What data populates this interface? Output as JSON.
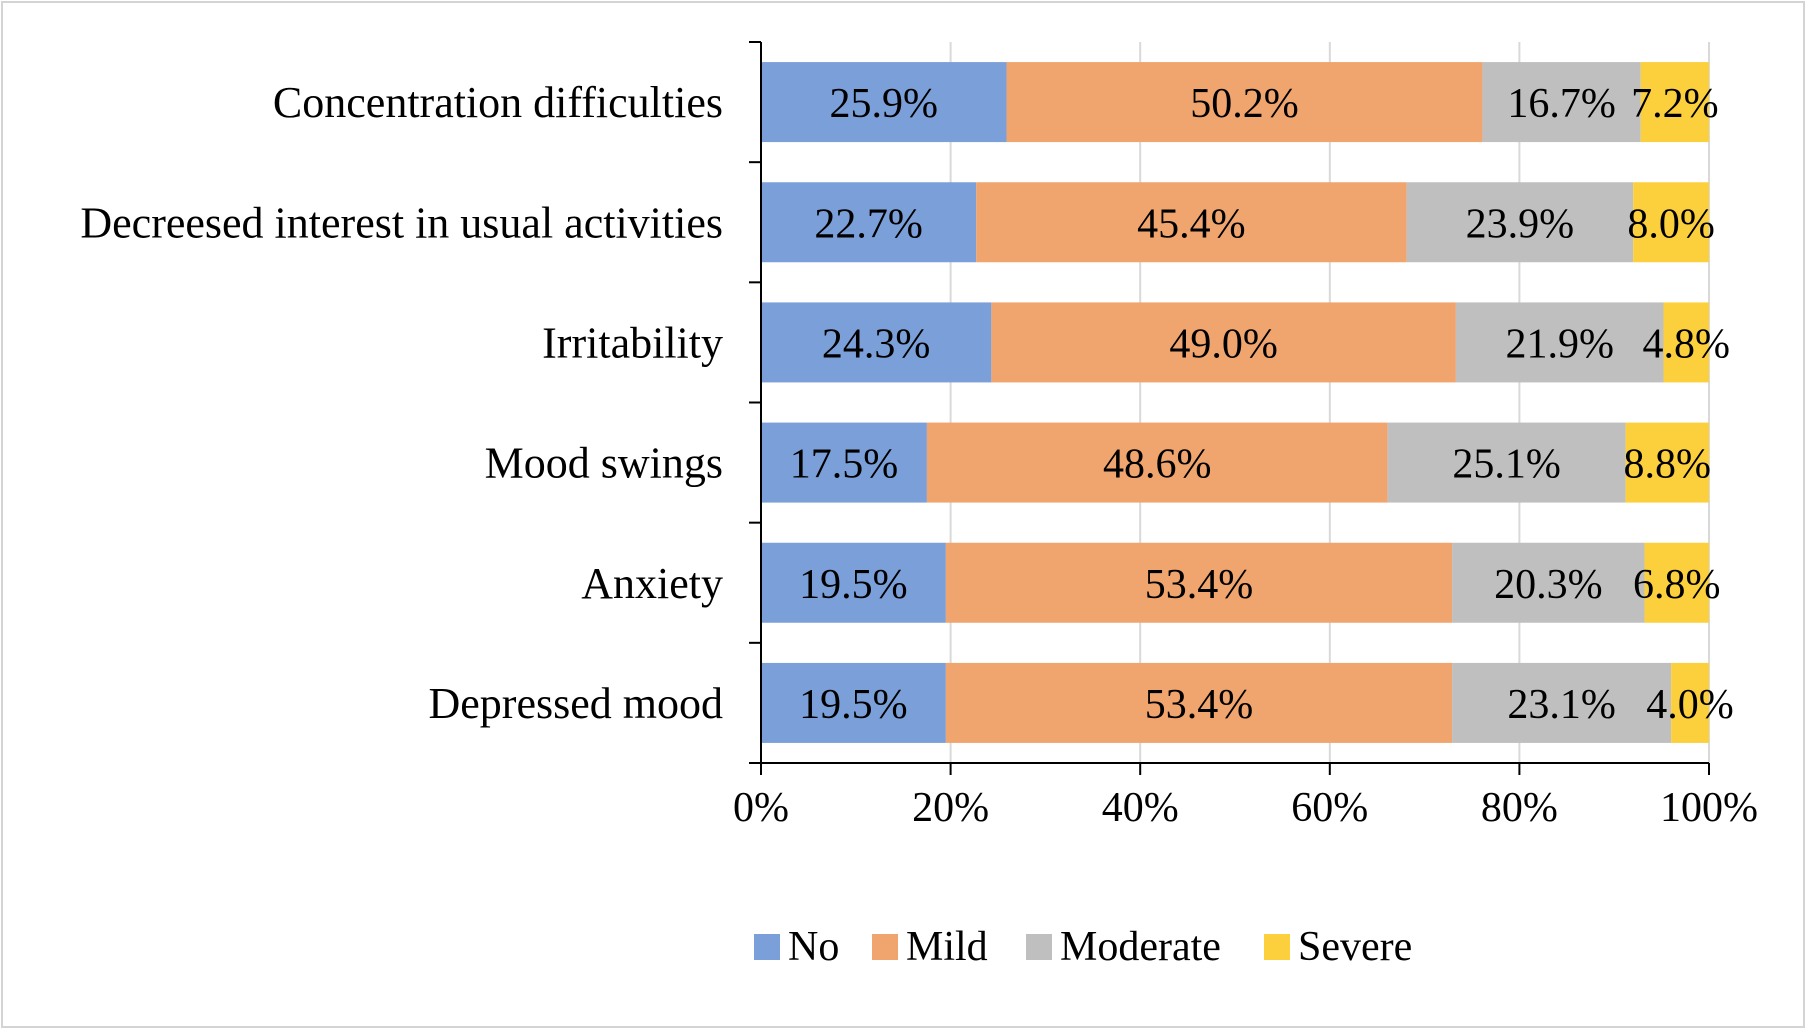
{
  "chart_data": {
    "type": "bar",
    "orientation": "horizontal",
    "stacked": "100%",
    "categories": [
      "Concentration difficulties",
      "Decreesed interest in usual activities",
      "Irritability",
      "Mood swings",
      "Anxiety",
      "Depressed mood"
    ],
    "series": [
      {
        "name": "No",
        "color": "#7b9fd8",
        "values": [
          25.9,
          22.7,
          24.3,
          17.5,
          19.5,
          19.5
        ]
      },
      {
        "name": "Mild",
        "color": "#f0a46e",
        "values": [
          50.2,
          45.4,
          49.0,
          48.6,
          53.4,
          53.4
        ]
      },
      {
        "name": "Moderate",
        "color": "#bfbfbf",
        "values": [
          16.7,
          23.9,
          21.9,
          25.1,
          20.3,
          23.1
        ]
      },
      {
        "name": "Severe",
        "color": "#fcd03c",
        "values": [
          7.2,
          8.0,
          4.8,
          8.8,
          6.8,
          4.0
        ]
      }
    ],
    "data_labels": [
      [
        "25.9%",
        "50.2%",
        "16.7%",
        "7.2%"
      ],
      [
        "22.7%",
        "45.4%",
        "23.9%",
        "8.0%"
      ],
      [
        "24.3%",
        "49.0%",
        "21.9%",
        "4.8%"
      ],
      [
        "17.5%",
        "48.6%",
        "25.1%",
        "8.8%"
      ],
      [
        "19.5%",
        "53.4%",
        "20.3%",
        "6.8%"
      ],
      [
        "19.5%",
        "53.4%",
        "23.1%",
        "4.0%"
      ]
    ],
    "x_ticks": [
      "0%",
      "20%",
      "40%",
      "60%",
      "80%",
      "100%"
    ],
    "xlim": [
      0,
      100
    ],
    "grid": true,
    "legend_position": "bottom",
    "title": "",
    "xlabel": "",
    "ylabel": ""
  }
}
